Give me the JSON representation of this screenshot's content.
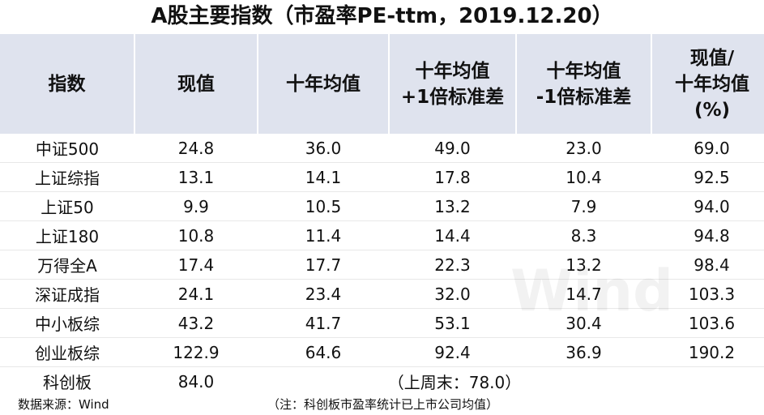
{
  "header": {
    "title": "A股主要指数（市盈率PE-ttm，2019.12.20）"
  },
  "table": {
    "columns": [
      [
        "指数"
      ],
      [
        "现值"
      ],
      [
        "十年均值"
      ],
      [
        "十年均值",
        "+1倍标准差"
      ],
      [
        "十年均值",
        "-1倍标准差"
      ],
      [
        "现值/",
        "十年均值",
        "(%)"
      ]
    ],
    "rows": [
      [
        "中证500",
        "24.8",
        "36.0",
        "49.0",
        "23.0",
        "69.0"
      ],
      [
        "上证综指",
        "13.1",
        "14.1",
        "17.8",
        "10.4",
        "92.5"
      ],
      [
        "上证50",
        "9.9",
        "10.5",
        "13.2",
        "7.9",
        "94.0"
      ],
      [
        "上证180",
        "10.8",
        "11.4",
        "14.4",
        "8.3",
        "94.8"
      ],
      [
        "万得全A",
        "17.4",
        "17.7",
        "22.3",
        "13.2",
        "98.4"
      ],
      [
        "深证成指",
        "24.1",
        "23.4",
        "32.0",
        "14.7",
        "103.3"
      ],
      [
        "中小板综",
        "43.2",
        "41.7",
        "53.1",
        "30.4",
        "103.6"
      ],
      [
        "创业板综",
        "122.9",
        "64.6",
        "92.4",
        "36.9",
        "190.2"
      ]
    ],
    "last_row": [
      "科创板",
      "84.0",
      "（上周末：78.0）"
    ]
  },
  "footer": {
    "source": "数据来源：Wind",
    "note": "（注：科创板市盈率统计已上市公司均值）"
  },
  "watermark": "Wind"
}
